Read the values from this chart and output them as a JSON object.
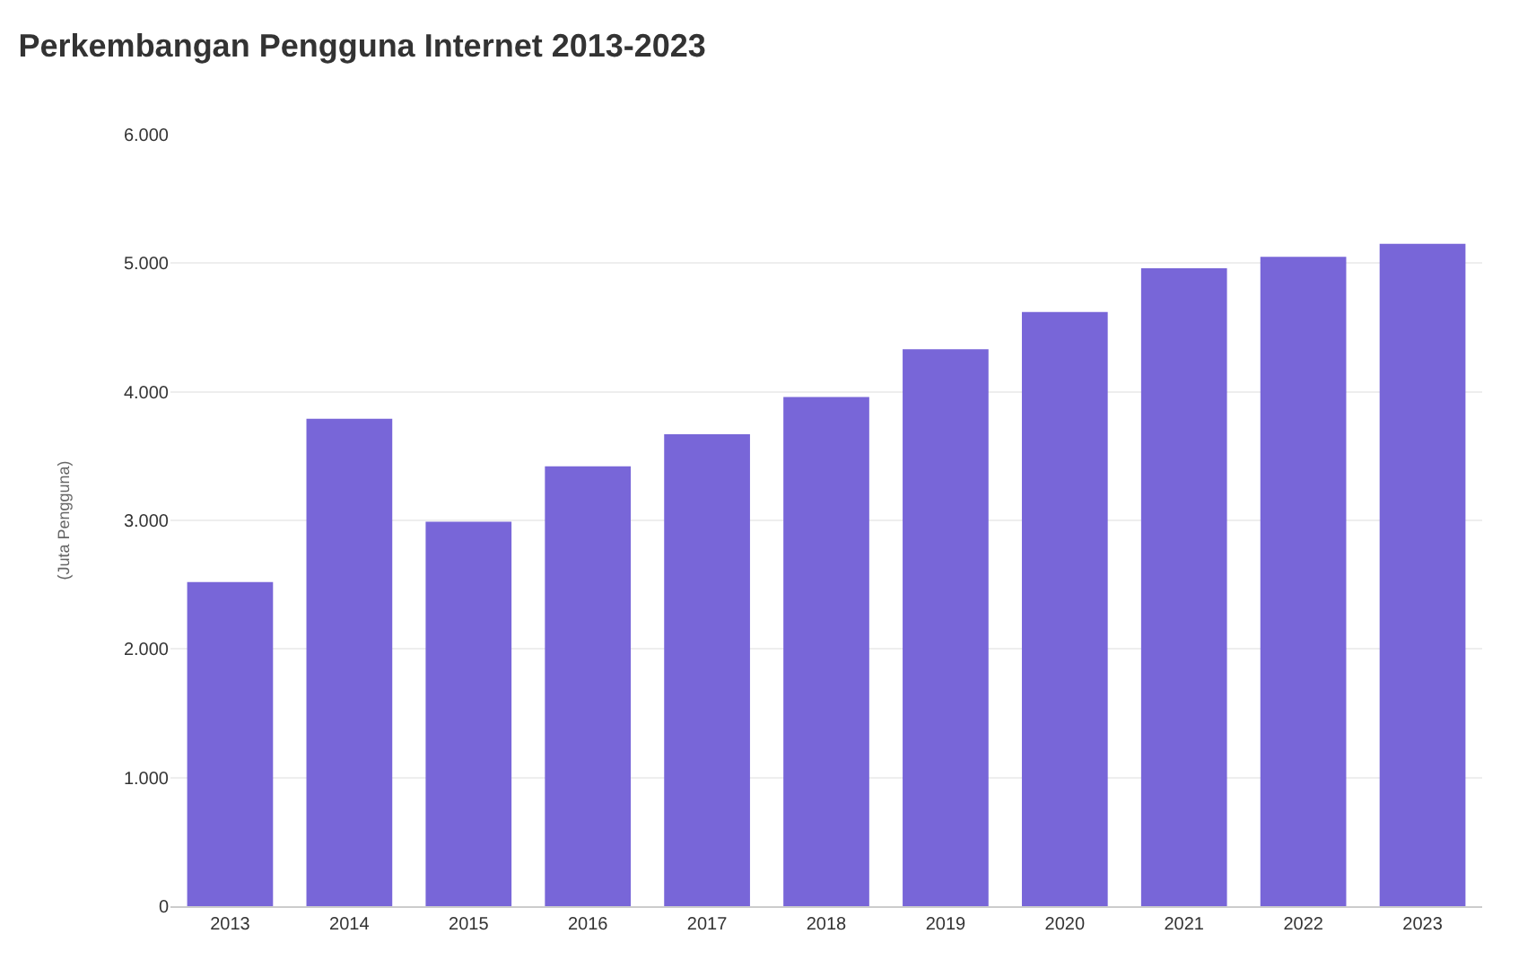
{
  "chart_data": {
    "type": "bar",
    "title": "Perkembangan Pengguna Internet 2013-2023",
    "ylabel": "(Juta Pengguna)",
    "categories": [
      "2013",
      "2014",
      "2015",
      "2016",
      "2017",
      "2018",
      "2019",
      "2020",
      "2021",
      "2022",
      "2023"
    ],
    "values": [
      2520,
      3790,
      2990,
      3420,
      3670,
      3960,
      4330,
      4620,
      4960,
      5050,
      5150
    ],
    "color": "#7866d8",
    "ylim": [
      0,
      6000
    ],
    "yticks": [
      {
        "value": 0,
        "label": "0"
      },
      {
        "value": 1000,
        "label": "1.000"
      },
      {
        "value": 2000,
        "label": "2.000"
      },
      {
        "value": 3000,
        "label": "3.000"
      },
      {
        "value": 4000,
        "label": "4.000"
      },
      {
        "value": 5000,
        "label": "5.000"
      },
      {
        "value": 6000,
        "label": "6.000"
      }
    ],
    "grid": "y"
  }
}
